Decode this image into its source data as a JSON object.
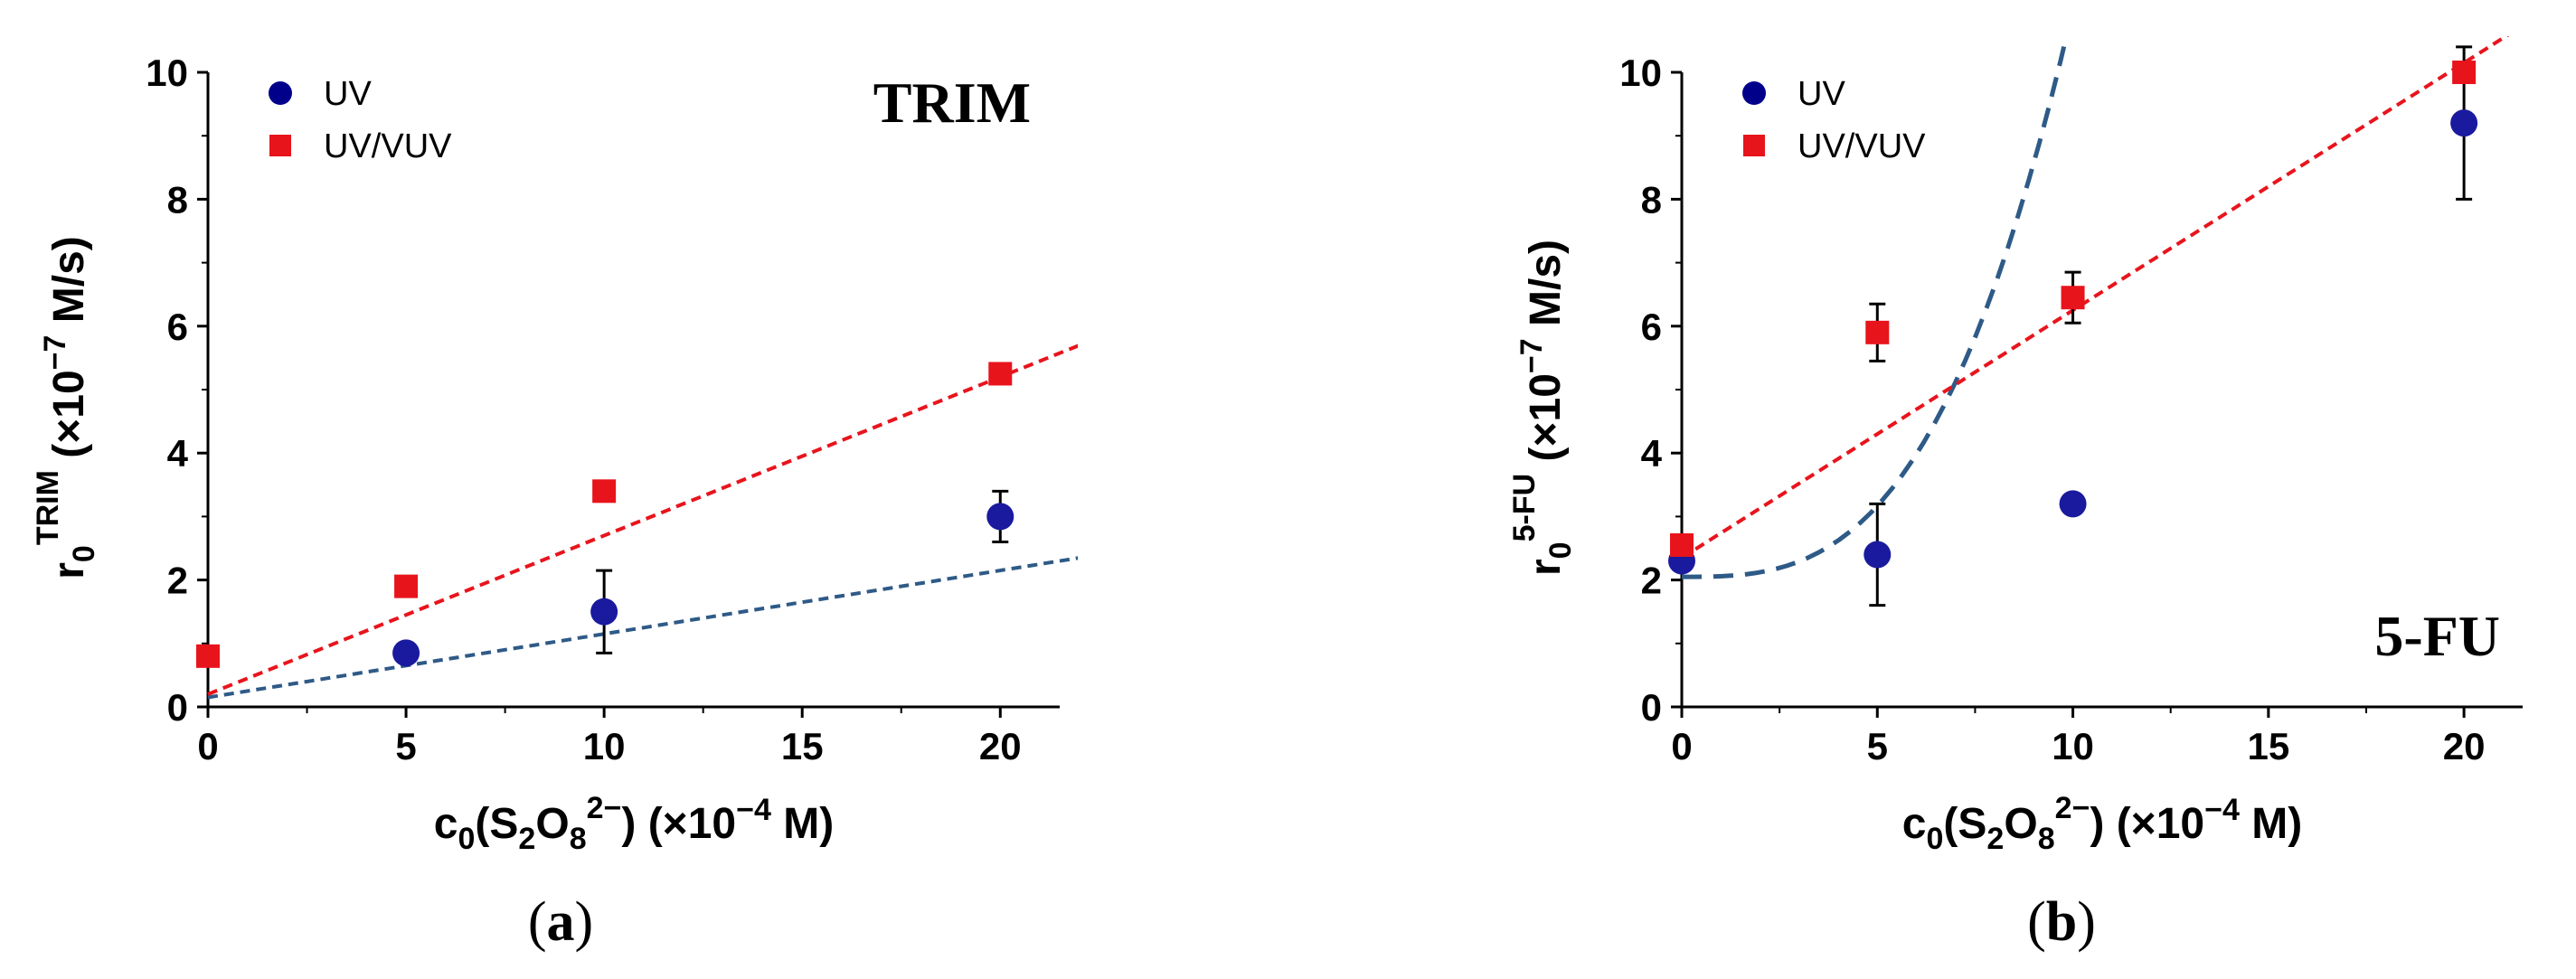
{
  "chart_data": [
    {
      "type": "scatter",
      "panel": "a",
      "caption": {
        "open": "(",
        "letter": "a",
        "close": ")"
      },
      "tag": "TRIM",
      "xlim": [
        0,
        21.5
      ],
      "ylim": [
        0,
        10
      ],
      "xticks": [
        0,
        5,
        10,
        15,
        20
      ],
      "yticks": [
        0,
        2,
        4,
        6,
        8,
        10
      ],
      "xlabel": {
        "pre": "c",
        "sub1": "0",
        "mid1": "(S",
        "sub2": "2",
        "mid2": "O",
        "sub3": "8",
        "sup": "2−",
        "post": ") (×10",
        "exp": "−4",
        "end": " M)"
      },
      "ylabel": {
        "r": "r",
        "sub": "0",
        "sup": "TRIM",
        "post": " (×10",
        "exp": "−7",
        "end": " M/s)"
      },
      "legend": [
        {
          "name": "UV",
          "marker": "circle",
          "color": "#00008B"
        },
        {
          "name": "UV/VUV",
          "marker": "square",
          "color": "#E8141C"
        }
      ],
      "series": [
        {
          "name": "UV",
          "marker": "circle",
          "color": "#1A1A9E",
          "x": [
            5,
            10,
            20
          ],
          "y": [
            0.85,
            1.5,
            3.0
          ],
          "err": [
            0.08,
            0.65,
            0.4
          ]
        },
        {
          "name": "UV/VUV",
          "marker": "square",
          "color": "#E8141C",
          "x": [
            0,
            5,
            10,
            20
          ],
          "y": [
            0.8,
            1.9,
            3.4,
            5.25
          ],
          "err": [
            0.12,
            0.12,
            0.1,
            0.08
          ]
        }
      ],
      "fits": [
        {
          "series": "UV",
          "type": "linear",
          "color": "#2E5A87",
          "dash": "fine",
          "coef": [
            0.15,
            0.1
          ]
        },
        {
          "series": "UV/VUV",
          "type": "linear",
          "color": "#E8141C",
          "dash": "fine",
          "coef": [
            0.2,
            0.25
          ]
        }
      ]
    },
    {
      "type": "scatter",
      "panel": "b",
      "caption": {
        "open": "(",
        "letter": "b",
        "close": ")"
      },
      "tag": "5-FU",
      "xlim": [
        0,
        21.5
      ],
      "ylim": [
        0,
        10
      ],
      "xticks": [
        0,
        5,
        10,
        15,
        20
      ],
      "yticks": [
        0,
        2,
        4,
        6,
        8,
        10
      ],
      "xlabel": {
        "pre": "c",
        "sub1": "0",
        "mid1": "(S",
        "sub2": "2",
        "mid2": "O",
        "sub3": "8",
        "sup": "2−",
        "post": ") (×10",
        "exp": "−4",
        "end": " M)"
      },
      "ylabel": {
        "r": "r",
        "sub": "0",
        "sup": "5-FU",
        "post": " (×10",
        "exp": "−7",
        "end": " M/s)"
      },
      "legend": [
        {
          "name": "UV",
          "marker": "circle",
          "color": "#00008B"
        },
        {
          "name": "UV/VUV",
          "marker": "square",
          "color": "#E8141C"
        }
      ],
      "series": [
        {
          "name": "UV",
          "marker": "circle",
          "color": "#1A1A9E",
          "x": [
            0,
            5,
            10,
            20
          ],
          "y": [
            2.3,
            2.4,
            3.2,
            9.2
          ],
          "err": [
            0.1,
            0.8,
            0.1,
            1.2
          ]
        },
        {
          "name": "UV/VUV",
          "marker": "square",
          "color": "#E8141C",
          "x": [
            0,
            5,
            10,
            20
          ],
          "y": [
            2.55,
            5.9,
            6.45,
            10.0
          ],
          "err": [
            0.15,
            0.45,
            0.4,
            0.05
          ]
        }
      ],
      "fits": [
        {
          "series": "UV",
          "type": "power",
          "color": "#2E5A87",
          "dash": "long",
          "coef": [
            2.05,
            0.00895,
            3
          ]
        },
        {
          "series": "UV/VUV",
          "type": "linear",
          "color": "#E8141C",
          "dash": "fine",
          "coef": [
            2.35,
            0.39
          ]
        }
      ]
    }
  ]
}
